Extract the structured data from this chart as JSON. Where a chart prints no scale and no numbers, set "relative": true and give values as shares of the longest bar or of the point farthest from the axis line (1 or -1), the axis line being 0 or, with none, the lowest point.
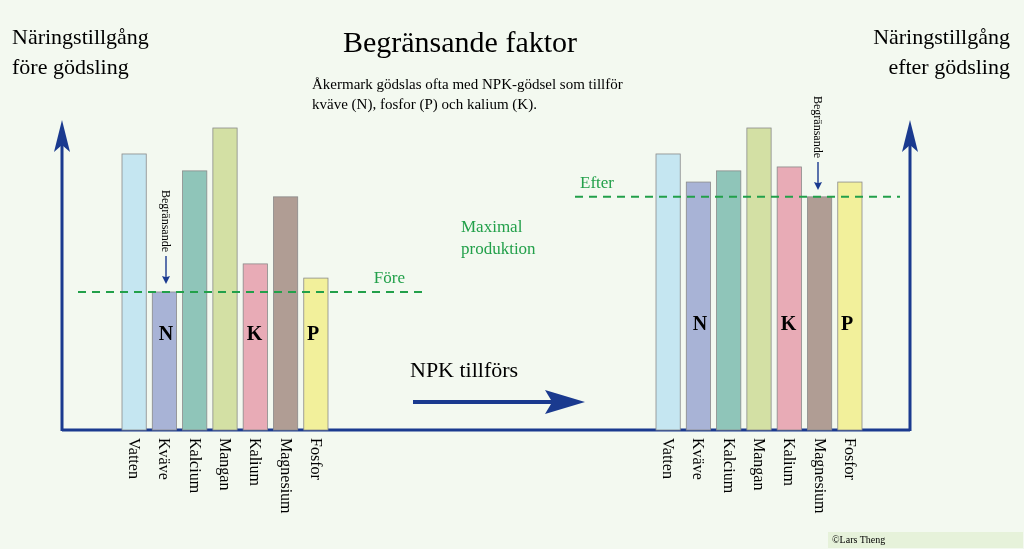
{
  "chart_data": [
    {
      "type": "bar",
      "title": "Begränsande faktor",
      "subtitle": "Åkermark gödslas ofta med NPK-gödsel som tillför kväve (N), fosfor (P) och kalium (K).",
      "ylabel": "Näringstillgång före gödsling",
      "relative": true,
      "categories": [
        "Vatten",
        "Kväve",
        "Kalcium",
        "Mangan",
        "Kalium",
        "Magnesium",
        "Fosfor"
      ],
      "values": [
        0.914,
        0.457,
        0.858,
        1,
        0.55,
        0.772,
        0.503
      ],
      "colors": [
        "#c5e6f1",
        "#a8b3d6",
        "#8fc5b9",
        "#d3e0a4",
        "#e8abb6",
        "#b09d94",
        "#f2f09b"
      ],
      "ref_lines": [
        {
          "axis": "y",
          "value": 0.457,
          "label": "Före",
          "color": "#22a04a",
          "line_style": "dashed"
        }
      ],
      "annotations": [
        "Begränsande",
        "N",
        "K",
        "P",
        "Maximal produktion",
        "NPK tillförs",
        "©Lars Theng"
      ]
    },
    {
      "type": "bar",
      "ylabel": "Näringstillgång efter gödsling",
      "relative": true,
      "categories": [
        "Vatten",
        "Kväve",
        "Kalcium",
        "Mangan",
        "Kalium",
        "Magnesium",
        "Fosfor"
      ],
      "values": [
        0.914,
        0.821,
        0.858,
        1,
        0.871,
        0.772,
        0.821
      ],
      "colors": [
        "#c5e6f1",
        "#a8b3d6",
        "#8fc5b9",
        "#d3e0a4",
        "#e8abb6",
        "#b09d94",
        "#f2f09b"
      ],
      "ref_lines": [
        {
          "axis": "y",
          "value": 0.772,
          "label": "Efter",
          "color": "#22a04a",
          "line_style": "dashed"
        }
      ],
      "annotations": [
        "Begränsande",
        "N",
        "K",
        "P"
      ]
    }
  ]
}
